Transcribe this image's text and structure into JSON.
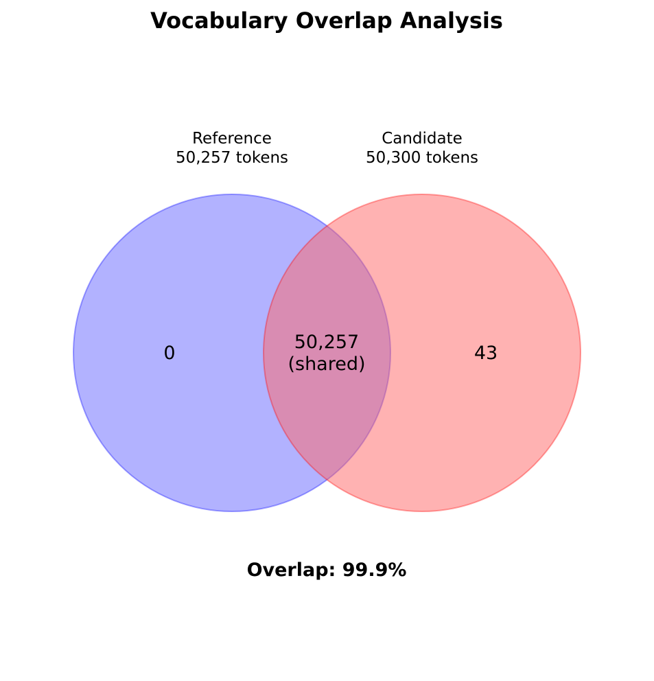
{
  "title": "Vocabulary Overlap Analysis",
  "sets": {
    "reference": {
      "name": "Reference",
      "size_label": "50,257 tokens",
      "size": 50257,
      "fill": "#6666ff",
      "stroke": "#0000ff"
    },
    "candidate": {
      "name": "Candidate",
      "size_label": "50,300 tokens",
      "size": 50300,
      "fill": "#ff6666",
      "stroke": "#ff0000"
    }
  },
  "regions": {
    "reference_only": {
      "count": "0"
    },
    "shared": {
      "count": "50,257",
      "label": "(shared)"
    },
    "candidate_only": {
      "count": "43"
    }
  },
  "overlap_text": "Overlap: 99.9%"
}
